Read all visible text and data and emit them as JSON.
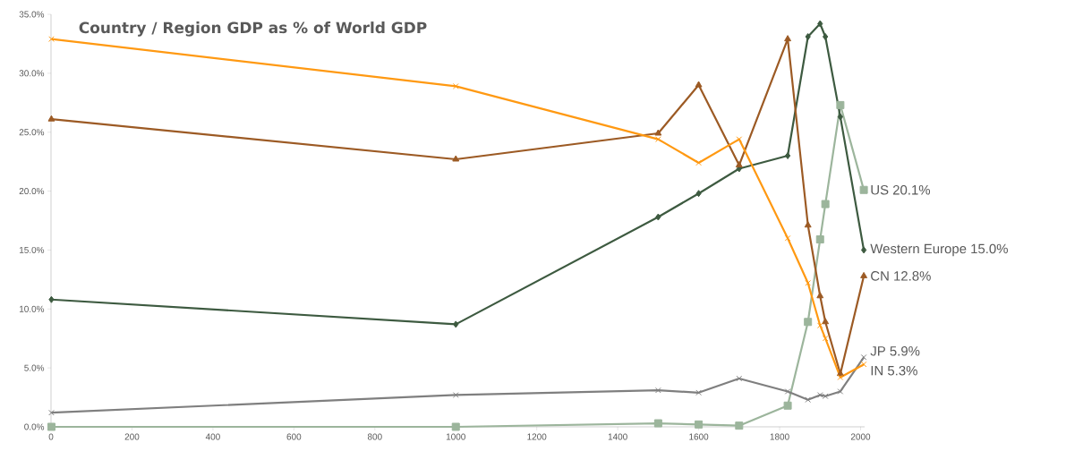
{
  "chart_data": {
    "type": "line",
    "title": "Country / Region GDP as % of World GDP",
    "x": [
      1,
      1000,
      1500,
      1600,
      1700,
      1820,
      1870,
      1900,
      1913,
      1950,
      2008
    ],
    "series": [
      {
        "name": "US 20.1%",
        "color": "#9cb59c",
        "marker": "square",
        "values": [
          0,
          0,
          0.3,
          0.2,
          0.1,
          1.8,
          8.9,
          15.9,
          18.9,
          27.3,
          20.1
        ]
      },
      {
        "name": "Western Europe 15.0%",
        "color": "#3d5a40",
        "marker": "diamond",
        "values": [
          10.8,
          8.7,
          17.8,
          19.8,
          21.9,
          23.0,
          33.1,
          34.2,
          33.1,
          26.3,
          15.0
        ]
      },
      {
        "name": "CN 12.8%",
        "color": "#9c5a24",
        "marker": "triangle",
        "values": [
          26.1,
          22.7,
          24.9,
          29.0,
          22.2,
          32.9,
          17.1,
          11.1,
          8.9,
          4.5,
          12.8
        ]
      },
      {
        "name": "JP 5.9%",
        "color": "#7f7f7f",
        "marker": "cross",
        "values": [
          1.2,
          2.7,
          3.1,
          2.9,
          4.1,
          3.0,
          2.3,
          2.7,
          2.6,
          3.0,
          5.9
        ]
      },
      {
        "name": "IN 5.3%",
        "color": "#ff9912",
        "marker": "cross",
        "values": [
          32.9,
          28.9,
          24.4,
          22.4,
          24.4,
          16.0,
          12.2,
          8.6,
          7.5,
          4.2,
          5.3
        ]
      }
    ],
    "xlim": [
      0,
      2010
    ],
    "xticks": [
      0,
      200,
      400,
      600,
      800,
      1000,
      1200,
      1400,
      1600,
      1800,
      2000
    ],
    "ylim": [
      0,
      35
    ],
    "yticks": [
      {
        "value": 0,
        "label": "0.0%"
      },
      {
        "value": 5,
        "label": "5.0%"
      },
      {
        "value": 10,
        "label": "10.0%"
      },
      {
        "value": 15,
        "label": "15.0%"
      },
      {
        "value": 20,
        "label": "20.0%"
      },
      {
        "value": 25,
        "label": "25.0%"
      },
      {
        "value": 30,
        "label": "30.0%"
      },
      {
        "value": 35,
        "label": "35.0%"
      }
    ],
    "grid": false,
    "legend": false,
    "line_style": "solid"
  }
}
